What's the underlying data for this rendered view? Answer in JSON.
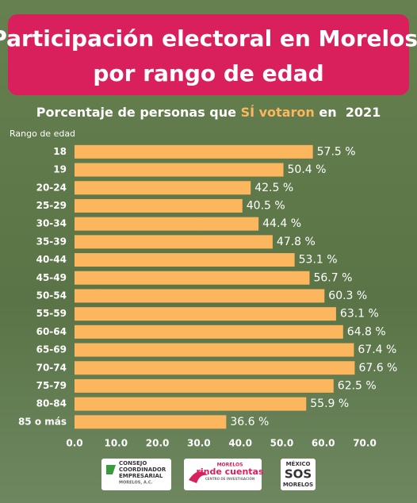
{
  "chart_data": {
    "type": "bar",
    "orientation": "horizontal",
    "title_lines": [
      "Participación electoral en Morelos,",
      "por rango de edad"
    ],
    "subtitle_parts": [
      "Porcentaje de personas que ",
      "SÍ votaron",
      " en  2021"
    ],
    "y_axis_label": "Rango de edad",
    "categories": [
      "18",
      "19",
      "20-24",
      "25-29",
      "30-34",
      "35-39",
      "40-44",
      "45-49",
      "50-54",
      "55-59",
      "60-64",
      "65-69",
      "70-74",
      "75-79",
      "80-84",
      "85 o más"
    ],
    "values": [
      57.5,
      50.4,
      42.5,
      40.5,
      44.4,
      47.8,
      53.1,
      56.7,
      60.3,
      63.1,
      64.8,
      67.4,
      67.6,
      62.5,
      55.9,
      36.6
    ],
    "value_labels": [
      "57.5 %",
      "50.4 %",
      "42.5 %",
      "40.5 %",
      "44.4 %",
      "47.8 %",
      "53.1 %",
      "56.7 %",
      "60.3 %",
      "63.1 %",
      "64.8 %",
      "67.4 %",
      "67.6 %",
      "62.5 %",
      "55.9 %",
      "36.6 %"
    ],
    "color": "#fbb65e",
    "xlim": [
      0,
      70
    ],
    "xticks": [
      {
        "value": 0,
        "label": "0.0"
      },
      {
        "value": 10,
        "label": "10.0"
      },
      {
        "value": 20,
        "label": "20.0"
      },
      {
        "value": 30,
        "label": "30.0"
      },
      {
        "value": 40,
        "label": "40.0"
      },
      {
        "value": 50,
        "label": "50.0"
      },
      {
        "value": 60,
        "label": "60.0"
      },
      {
        "value": 70,
        "label": "70.0"
      }
    ],
    "grid": false
  },
  "logos": [
    {
      "lines": [
        "CONSEJO",
        "COORDINADOR",
        "EMPRESARIAL",
        "MORELOS, A.C."
      ]
    },
    {
      "lines": [
        "MORELOS",
        "rinde cuentas",
        "CENTRO DE INVESTIGACIÓN"
      ]
    },
    {
      "lines": [
        "MÉXICO",
        "SOS",
        "MORELOS"
      ]
    }
  ]
}
